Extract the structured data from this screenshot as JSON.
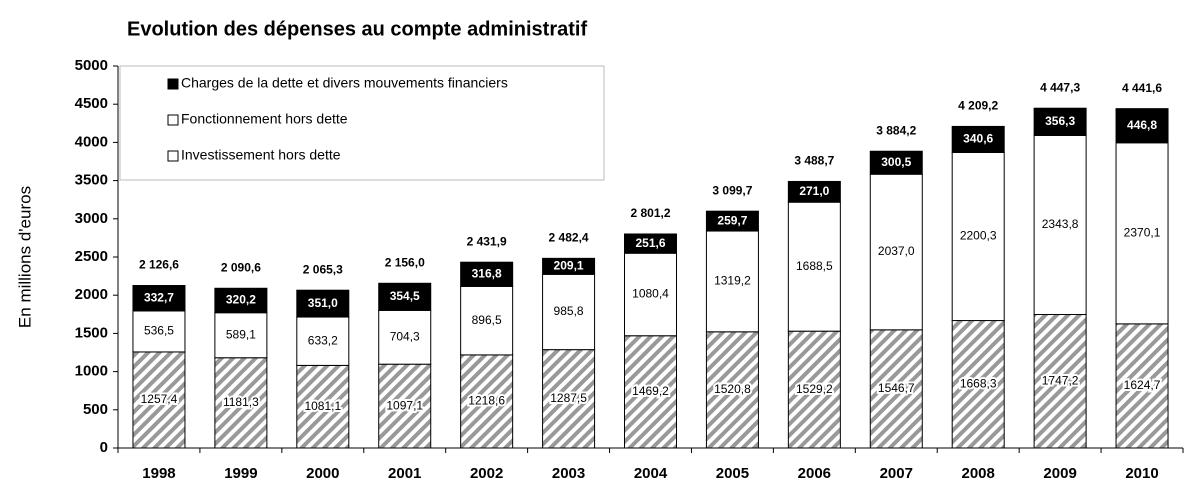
{
  "chart_data": {
    "type": "stacked_bar",
    "title": "Evolution des dépenses au compte administratif",
    "y_label": "En millions d'euros",
    "categories": [
      "1998",
      "1999",
      "2000",
      "2001",
      "2002",
      "2003",
      "2004",
      "2005",
      "2006",
      "2007",
      "2008",
      "2009",
      "2010"
    ],
    "series": [
      {
        "name": "Investissement hors dette",
        "color": "#999999",
        "pattern": "hatch",
        "values": [
          1257.4,
          1181.3,
          1081.1,
          1097.1,
          1218.6,
          1287.5,
          1469.2,
          1520.8,
          1529.2,
          1546.7,
          1668.3,
          1747.2,
          1624.7
        ],
        "value_labels": [
          "1257,4",
          "1181,3",
          "1081,1",
          "1097,1",
          "1218,6",
          "1287,5",
          "1469,2",
          "1520,8",
          "1529,2",
          "1546,7",
          "1668,3",
          "1747,2",
          "1624,7"
        ]
      },
      {
        "name": "Fonctionnement hors dette",
        "color": "#ffffff",
        "values": [
          536.5,
          589.1,
          633.2,
          704.3,
          896.5,
          985.8,
          1080.4,
          1319.2,
          1688.5,
          2037.0,
          2200.3,
          2343.8,
          2370.1
        ],
        "value_labels": [
          "536,5",
          "589,1",
          "633,2",
          "704,3",
          "896,5",
          "985,8",
          "1080,4",
          "1319,2",
          "1688,5",
          "2037,0",
          "2200,3",
          "2343,8",
          "2370,1"
        ]
      },
      {
        "name": "Charges de la dette et divers mouvements financiers",
        "color": "#000000",
        "values": [
          332.7,
          320.2,
          351.0,
          354.5,
          316.8,
          209.1,
          251.6,
          259.7,
          271.0,
          300.5,
          340.6,
          356.3,
          446.8
        ],
        "value_labels": [
          "332,7",
          "320,2",
          "351,0",
          "354,5",
          "316,8",
          "209,1",
          "251,6",
          "259,7",
          "271,0",
          "300,5",
          "340,6",
          "356,3",
          "446,8"
        ]
      }
    ],
    "totals": [
      2126.6,
      2090.6,
      2065.3,
      2156.0,
      2431.9,
      2482.4,
      2801.2,
      3099.7,
      3488.7,
      3884.2,
      4209.2,
      4447.3,
      4441.6
    ],
    "total_labels": [
      "2 126,6",
      "2 090,6",
      "2 065,3",
      "2 156,0",
      "2 431,9",
      "2 482,4",
      "2 801,2",
      "3 099,7",
      "3 488,7",
      "3 884,2",
      "4 209,2",
      "4 447,3",
      "4 441,6"
    ],
    "ylim": [
      0,
      5000
    ],
    "yticks": [
      0,
      500,
      1000,
      1500,
      2000,
      2500,
      3000,
      3500,
      4000,
      4500,
      5000
    ],
    "grid": false,
    "legend": "upper left"
  }
}
